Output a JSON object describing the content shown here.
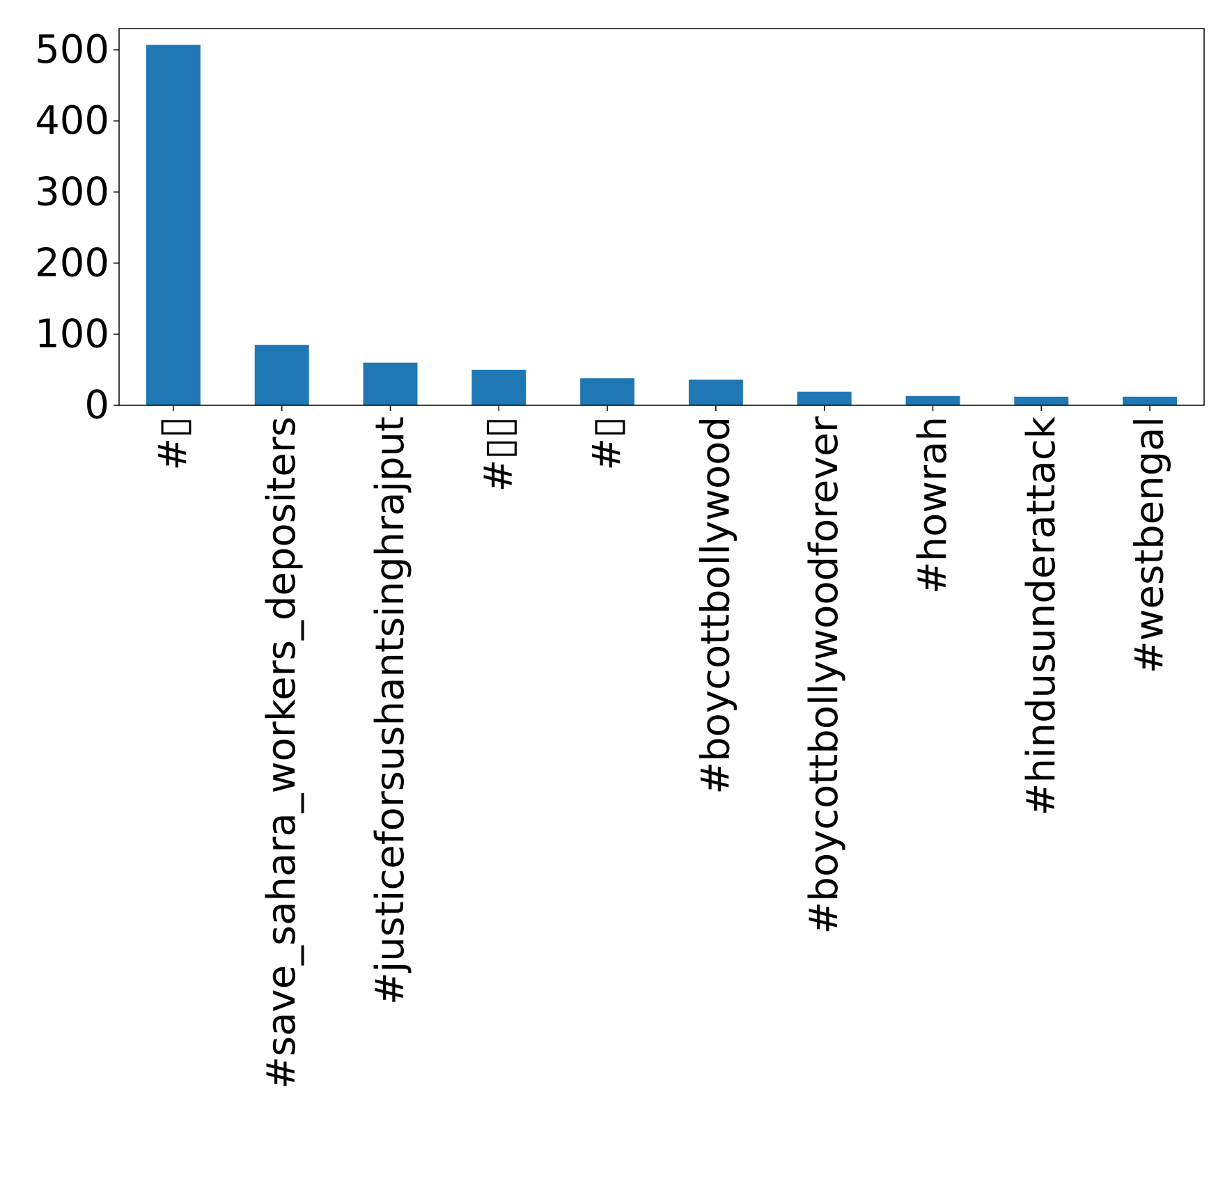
{
  "chart_data": {
    "type": "bar",
    "categories": [
      "#▯",
      "#save_sahara_workers_depositers",
      "#justiceforsushantsinghrajput",
      "#▯▯",
      "#▯",
      "#boycottbollywood",
      "#boycottbollywoodforever",
      "#howrah",
      "#hindusunderattack",
      "#westbengal"
    ],
    "values": [
      507,
      85,
      60,
      50,
      38,
      36,
      19,
      13,
      12,
      12
    ],
    "ylim": [
      0,
      530
    ],
    "yticks": [
      0,
      100,
      200,
      300,
      400,
      500
    ],
    "bar_color": "#1f77b4",
    "grid": false,
    "legend": "none",
    "title": "",
    "xlabel": "",
    "ylabel": ""
  }
}
